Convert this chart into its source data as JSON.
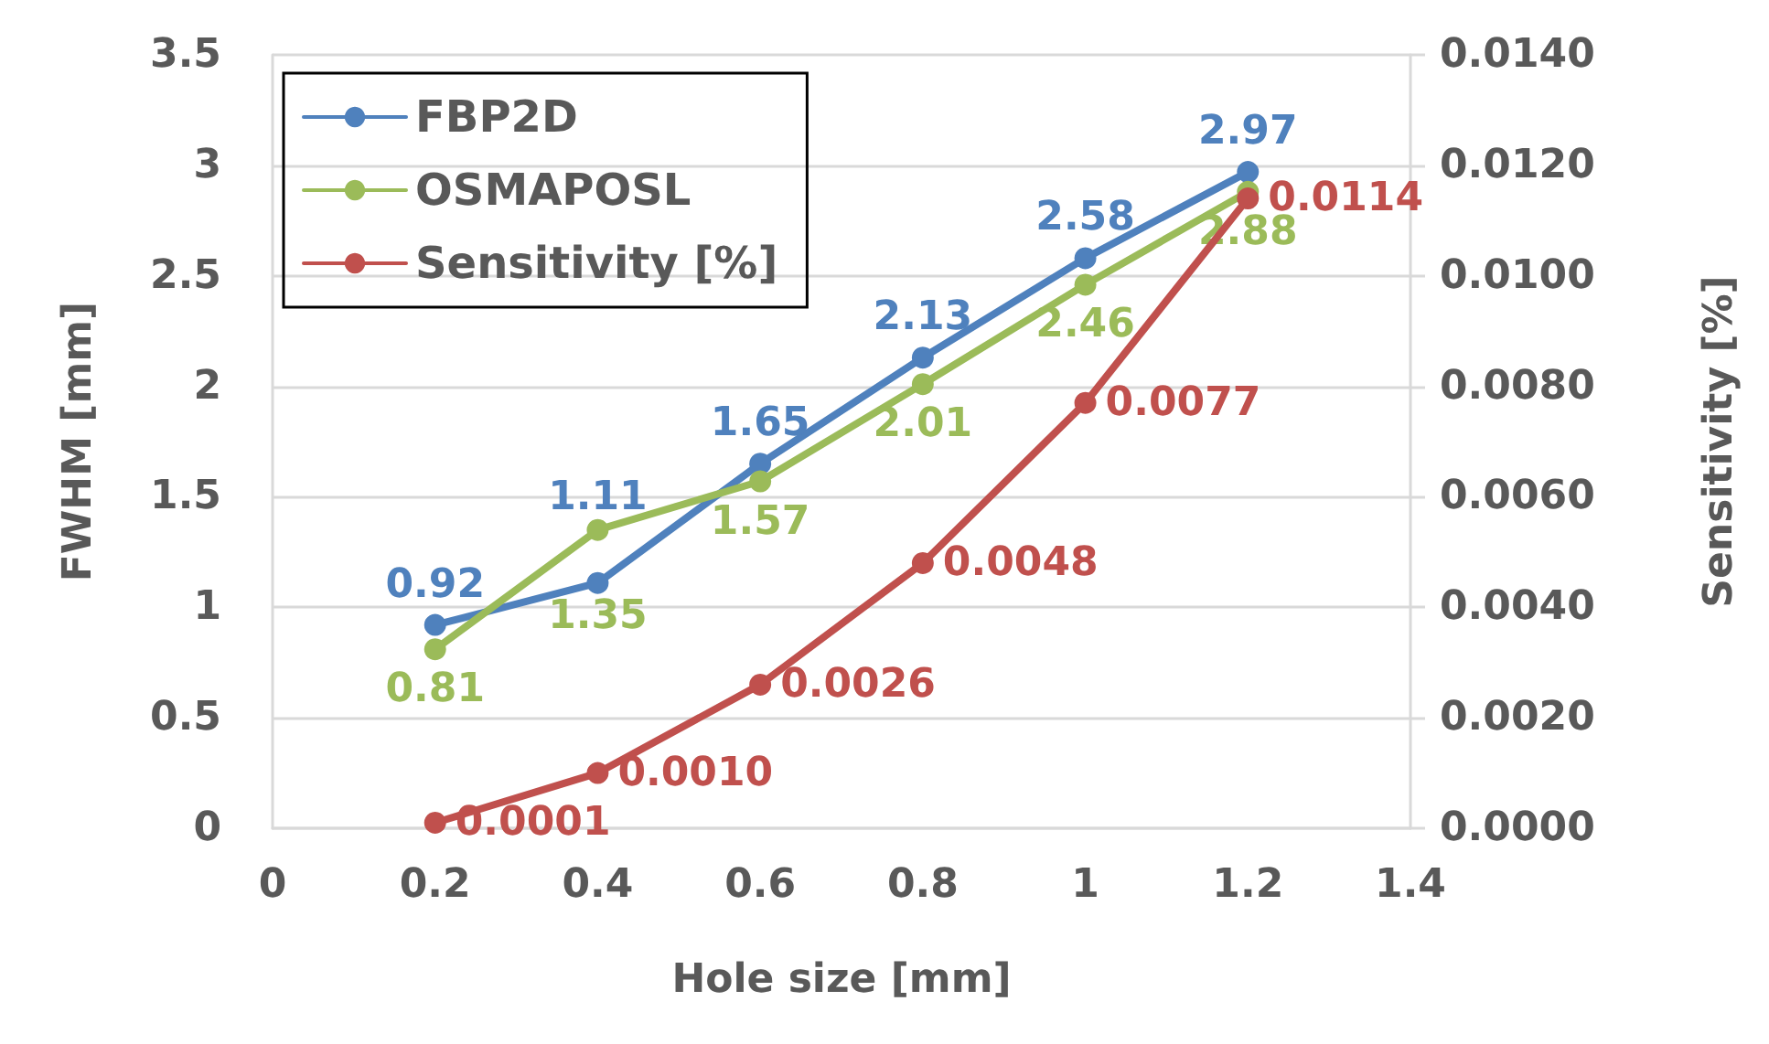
{
  "chart_data": {
    "type": "line",
    "xlabel": "Hole size [mm]",
    "ylabel": "FWHM [mm]",
    "y2label": "Sensitivity [%]",
    "x": [
      0.2,
      0.4,
      0.6,
      0.8,
      1.0,
      1.2
    ],
    "series": [
      {
        "name": "FBP2D",
        "color": "#4f81bd",
        "values": [
          0.92,
          1.11,
          1.65,
          2.13,
          2.58,
          2.97
        ],
        "value_labels": [
          "0.92",
          "1.11",
          "1.65",
          "2.13",
          "2.58",
          "2.97"
        ]
      },
      {
        "name": "OSMAPOSL",
        "color": "#9bbb59",
        "values": [
          0.81,
          1.35,
          1.57,
          2.01,
          2.46,
          2.88
        ],
        "value_labels": [
          "0.81",
          "1.35",
          "1.57",
          "2.01",
          "2.46",
          "2.88"
        ]
      },
      {
        "name": "Sensitivity [%]",
        "color": "#c0504d",
        "axis": "y2",
        "values": [
          0.0001,
          0.001,
          0.0026,
          0.0048,
          0.0077,
          0.0114
        ],
        "value_labels": [
          "0.0001",
          "0.0010",
          "0.0026",
          "0.0048",
          "0.0077",
          "0.0114"
        ]
      }
    ],
    "xlim": [
      0,
      1.4
    ],
    "xticks": [
      0,
      0.2,
      0.4,
      0.6,
      0.8,
      1,
      1.2,
      1.4
    ],
    "ylim": [
      0,
      3.5
    ],
    "yticks": [
      0,
      0.5,
      1,
      1.5,
      2,
      2.5,
      3,
      3.5
    ],
    "y2lim": [
      0,
      0.014
    ],
    "y2ticks": [
      {
        "value": 0,
        "label": "0.0000"
      },
      {
        "value": 0.002,
        "label": "0.0020"
      },
      {
        "value": 0.004,
        "label": "0.0040"
      },
      {
        "value": 0.006,
        "label": "0.0060"
      },
      {
        "value": 0.008,
        "label": "0.0080"
      },
      {
        "value": 0.01,
        "label": "0.0100"
      },
      {
        "value": 0.012,
        "label": "0.0120"
      },
      {
        "value": 0.014,
        "label": "0.0140"
      }
    ],
    "grid": "y",
    "legend": "top left",
    "marker": "circle",
    "line_style": "solid"
  }
}
